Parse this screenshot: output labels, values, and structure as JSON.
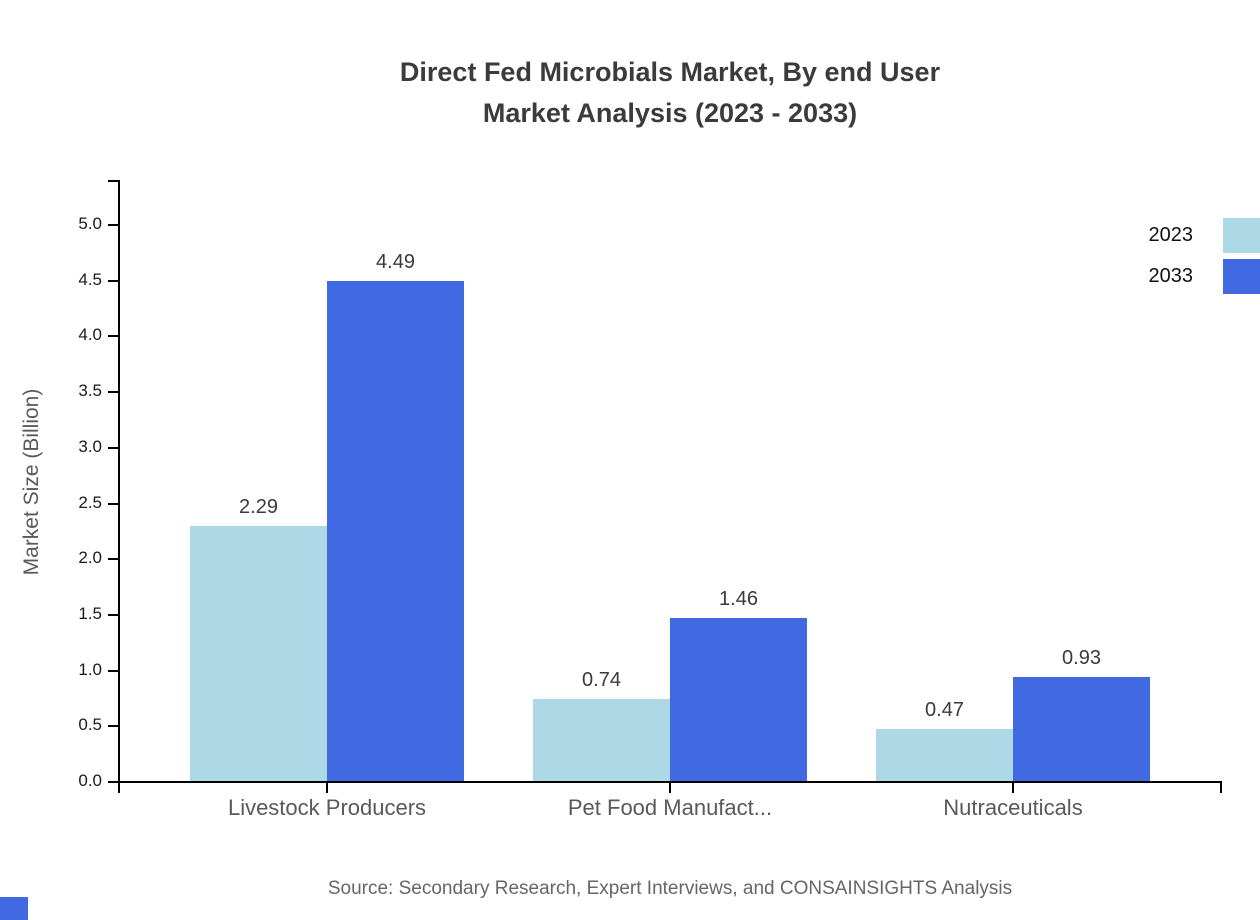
{
  "title": {
    "line1": "Direct Fed Microbials Market, By end User",
    "line2": "Market Analysis (2023 - 2033)"
  },
  "source": "Source: Secondary Research, Expert Interviews, and CONSAINSIGHTS Analysis",
  "colors": {
    "series_2023": "#ADD8E6",
    "series_2033": "#4169E1",
    "title_text": "#3b3b3b",
    "axis_text": "#595959",
    "tick_text": "#1a1a1a",
    "corner_mark": "#4169E1"
  },
  "chart_data": {
    "type": "bar",
    "title": "Direct Fed Microbials Market, By end User Market Analysis (2023 - 2033)",
    "categories": [
      "Livestock Producers",
      "Pet Food Manufact...",
      "Nutraceuticals"
    ],
    "series": [
      {
        "name": "2023",
        "color": "#ADD8E6",
        "values": [
          2.29,
          0.74,
          0.47
        ]
      },
      {
        "name": "2033",
        "color": "#4169E1",
        "values": [
          4.49,
          1.46,
          0.93
        ]
      }
    ],
    "xlabel": "",
    "ylabel": "Market Size (Billion)",
    "ylim": [
      0,
      5.5
    ],
    "yticks": [
      0.0,
      0.5,
      1.0,
      1.5,
      2.0,
      2.5,
      3.0,
      3.5,
      4.0,
      4.5,
      5.0
    ],
    "grid": false,
    "legend_position": "top-right",
    "value_labels": true,
    "value_label_format": "0.00"
  }
}
